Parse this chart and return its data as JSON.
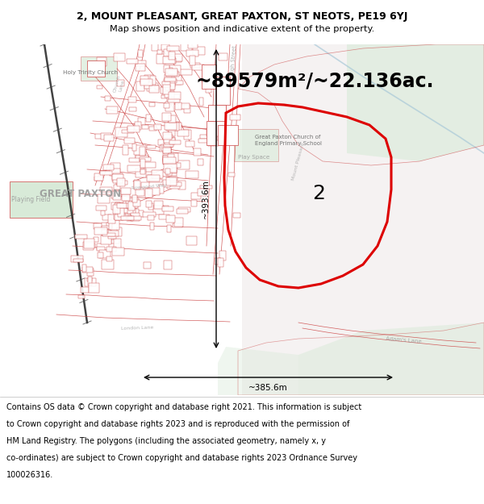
{
  "title_line1": "2, MOUNT PLEASANT, GREAT PAXTON, ST NEOTS, PE19 6YJ",
  "title_line2": "Map shows position and indicative extent of the property.",
  "area_text": "~89579m²/~22.136ac.",
  "width_label": "~385.6m",
  "height_label": "~393.6m",
  "plot_number": "2",
  "footer_text": "Contains OS data © Crown copyright and database right 2021. This information is subject to Crown copyright and database rights 2023 and is reproduced with the permission of HM Land Registry. The polygons (including the associated geometry, namely x, y co-ordinates) are subject to Crown copyright and database rights 2023 Ordnance Survey 100026316.",
  "bg_color": "#faf8f8",
  "map_bg": "#f9f6f6",
  "title_bg": "#ffffff",
  "footer_bg": "#ffffff",
  "red_color": "#dd0000",
  "road_color": "#cc4444",
  "green_area": "#d8ead8",
  "light_green": "#e8f0e8",
  "blue_color": "#a8c8d8",
  "title_fontsize": 9.0,
  "subtitle_fontsize": 8.2,
  "area_fontsize": 17,
  "measurement_fontsize": 7.5,
  "plot_label_fontsize": 18,
  "footer_fontsize": 7.0,
  "map_label_color": "#999999",
  "map_label_dark": "#666666"
}
